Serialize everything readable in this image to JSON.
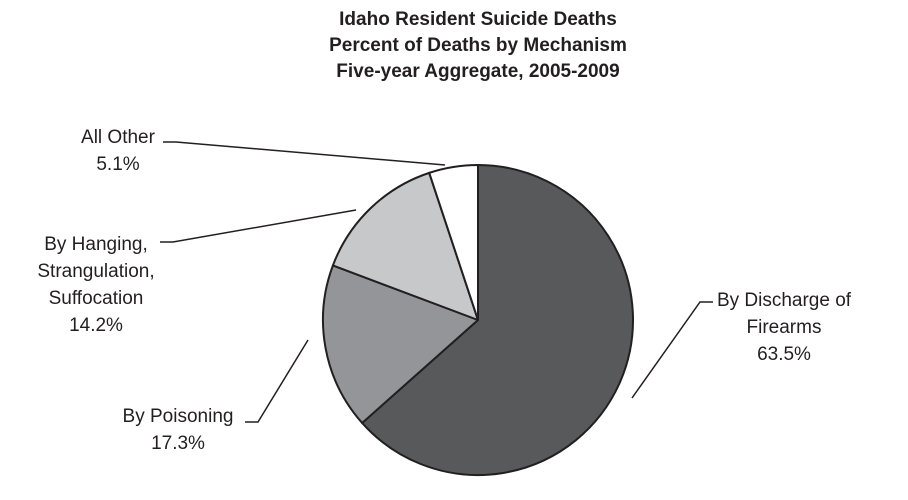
{
  "chart_data": {
    "type": "pie",
    "title": [
      "Idaho Resident Suicide Deaths",
      "Percent of Deaths by Mechanism",
      "Five-year Aggregate, 2005-2009"
    ],
    "categories": [
      [
        "By Discharge of",
        "Firearms"
      ],
      [
        "By Poisoning"
      ],
      [
        "By Hanging,",
        "Strangulation,",
        "Suffocation"
      ],
      [
        "All Other"
      ]
    ],
    "values": [
      63.5,
      17.3,
      14.2,
      5.1
    ],
    "value_labels": [
      "63.5%",
      "17.3%",
      "14.2%",
      "5.1%"
    ],
    "colors": [
      "#58595b",
      "#939598",
      "#c7c8ca",
      "#ffffff"
    ]
  }
}
